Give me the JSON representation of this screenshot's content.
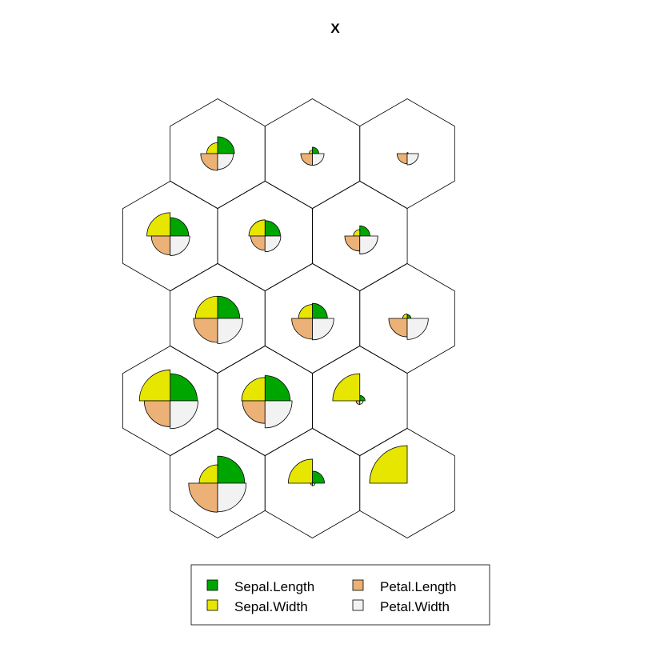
{
  "chart_data": {
    "type": "som-codes-fan-plot",
    "title": "X",
    "grid": {
      "xdim": 3,
      "ydim": 5,
      "topology": "hexagonal"
    },
    "variables": [
      {
        "name": "Sepal.Length",
        "color": "#00A600"
      },
      {
        "name": "Sepal.Width",
        "color": "#E6E600"
      },
      {
        "name": "Petal.Length",
        "color": "#ECB176"
      },
      {
        "name": "Petal.Width",
        "color": "#F2F2F2"
      }
    ],
    "value_range": [
      0,
      1
    ],
    "units": [
      {
        "unit": 1,
        "row": 1,
        "col": 1,
        "values": [
          0.72,
          0.49,
          0.77,
          0.76
        ]
      },
      {
        "unit": 2,
        "row": 1,
        "col": 2,
        "values": [
          0.32,
          0.64,
          0.05,
          0.07
        ]
      },
      {
        "unit": 3,
        "row": 1,
        "col": 3,
        "values": [
          0.0,
          1.0,
          0.0,
          0.0
        ]
      },
      {
        "unit": 4,
        "row": 2,
        "col": 1,
        "values": [
          0.72,
          0.82,
          0.69,
          0.74
        ]
      },
      {
        "unit": 5,
        "row": 2,
        "col": 2,
        "values": [
          0.67,
          0.62,
          0.6,
          0.72
        ]
      },
      {
        "unit": 6,
        "row": 2,
        "col": 3,
        "values": [
          0.14,
          0.72,
          0.1,
          0.09
        ]
      },
      {
        "unit": 7,
        "row": 3,
        "col": 1,
        "values": [
          0.59,
          0.59,
          0.64,
          0.67
        ]
      },
      {
        "unit": 8,
        "row": 3,
        "col": 2,
        "values": [
          0.4,
          0.37,
          0.55,
          0.57
        ]
      },
      {
        "unit": 9,
        "row": 3,
        "col": 3,
        "values": [
          0.1,
          0.12,
          0.49,
          0.56
        ]
      },
      {
        "unit": 10,
        "row": 4,
        "col": 1,
        "values": [
          0.49,
          0.62,
          0.5,
          0.52
        ]
      },
      {
        "unit": 11,
        "row": 4,
        "col": 2,
        "values": [
          0.41,
          0.43,
          0.38,
          0.42
        ]
      },
      {
        "unit": 12,
        "row": 4,
        "col": 3,
        "values": [
          0.27,
          0.17,
          0.4,
          0.48
        ]
      },
      {
        "unit": 13,
        "row": 5,
        "col": 1,
        "values": [
          0.45,
          0.29,
          0.45,
          0.42
        ]
      },
      {
        "unit": 14,
        "row": 5,
        "col": 2,
        "values": [
          0.17,
          0.09,
          0.31,
          0.31
        ]
      },
      {
        "unit": 15,
        "row": 5,
        "col": 3,
        "values": [
          0.03,
          0.0,
          0.27,
          0.3
        ]
      }
    ],
    "legend": {
      "placement": "bottom-center",
      "columns": 2,
      "labels": [
        "Sepal.Length",
        "Sepal.Width",
        "Petal.Length",
        "Petal.Width"
      ]
    }
  }
}
